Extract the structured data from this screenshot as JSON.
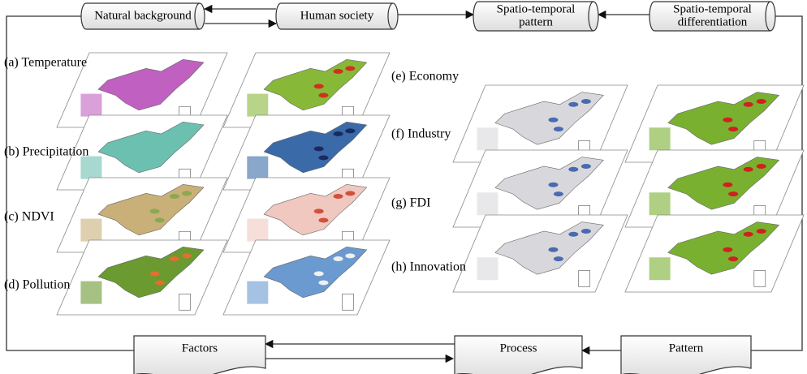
{
  "top_flow": {
    "natural_background": "Natural background",
    "human_society": "Human society",
    "pattern": [
      "Spatio-temporal",
      "pattern"
    ],
    "differentiation": [
      "Spatio-temporal",
      "differentiation"
    ]
  },
  "factor_labels": [
    "(a) Temperature",
    "(b) Precipitation",
    "(c) NDVI",
    "(d) Pollution",
    "(e) Economy",
    "(f) Industry",
    "(g) FDI",
    "(h) Innovation"
  ],
  "bottom_flow": {
    "factors": "Factors",
    "process": "Process",
    "pattern": "Pattern"
  }
}
